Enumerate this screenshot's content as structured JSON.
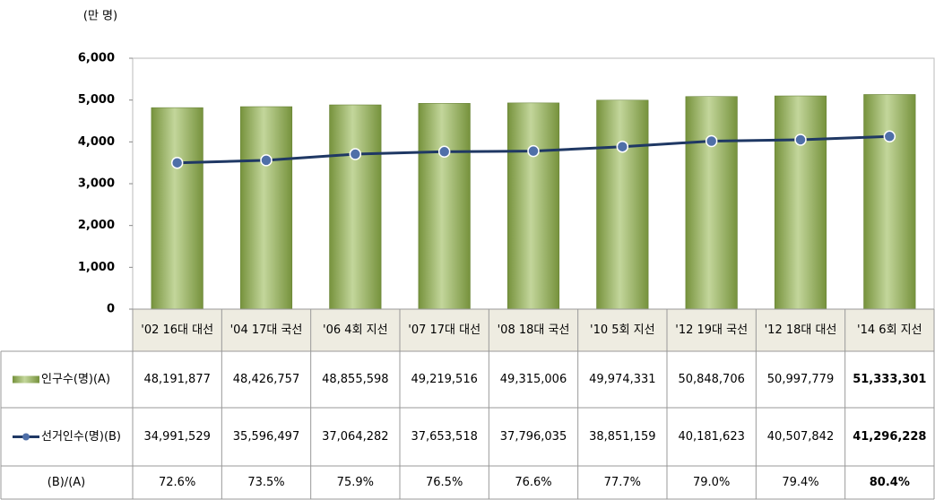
{
  "chart_data": {
    "type": "bar_line",
    "y_label": "(만 명)",
    "categories": [
      "'02 16대 대선",
      "'04 17대 국선",
      "'06 4회 지선",
      "'07 17대 대선",
      "'08 18대 국선",
      "'10 5회 지선",
      "'12 19대 국선",
      "'12 18대 대선",
      "'14 6회 지선"
    ],
    "series": [
      {
        "name": "인구수(명)(A)",
        "kind": "bar",
        "color": "#9bbb59",
        "values": [
          4819.1877,
          4842.6757,
          4885.5598,
          4921.9516,
          4931.5006,
          4997.4331,
          5084.8706,
          5099.7779,
          5133.3301
        ],
        "value_labels": [
          "48,191,877",
          "48,426,757",
          "48,855,598",
          "49,219,516",
          "49,315,006",
          "49,974,331",
          "50,848,706",
          "50,997,779",
          "51,333,301"
        ]
      },
      {
        "name": "선거인수(명)(B)",
        "kind": "line",
        "color": "#1f3864",
        "values": [
          3499.1529,
          3559.6497,
          3706.4282,
          3765.3518,
          3779.6035,
          3885.1159,
          4018.1623,
          4050.7842,
          4129.6228
        ],
        "value_labels": [
          "34,991,529",
          "35,596,497",
          "37,064,282",
          "37,653,518",
          "37,796,035",
          "38,851,159",
          "40,181,623",
          "40,507,842",
          "41,296,228"
        ]
      }
    ],
    "ratio": {
      "name": "(B)/(A)",
      "labels": [
        "72.6%",
        "73.5%",
        "75.9%",
        "76.5%",
        "76.6%",
        "77.7%",
        "79.0%",
        "79.4%",
        "80.4%"
      ]
    },
    "ylim": [
      0,
      6000
    ],
    "yticks": [
      0,
      {
        "value": 1000,
        "label": "1,000"
      },
      {
        "value": 2000,
        "label": "2,000"
      },
      {
        "value": 3000,
        "label": "3,000"
      },
      {
        "value": 4000,
        "label": "4,000"
      },
      {
        "value": 5000,
        "label": "5,000"
      },
      {
        "value": 6000,
        "label": "6,000"
      }
    ],
    "grid": false
  }
}
